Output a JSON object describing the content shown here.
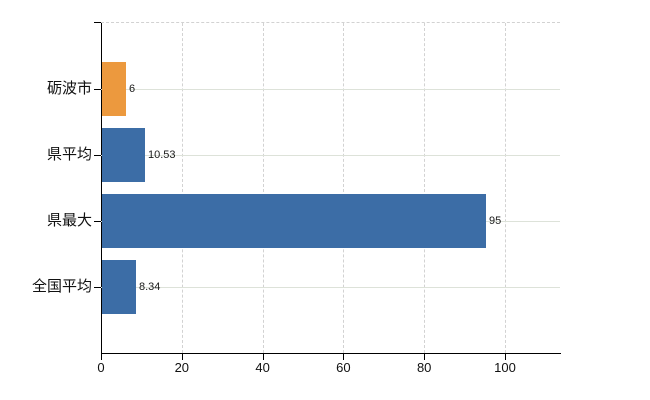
{
  "chart_data": {
    "type": "bar",
    "orientation": "horizontal",
    "title": "",
    "categories": [
      "砺波市",
      "県平均",
      "県最大",
      "全国平均"
    ],
    "values": [
      6,
      10.53,
      95,
      8.34
    ],
    "value_labels": [
      "6",
      "10.53",
      "95",
      "8.34"
    ],
    "bar_colors": [
      "#EC993E",
      "#3C6DA6",
      "#3C6DA6",
      "#3C6DA6"
    ],
    "x_ticks": [
      0,
      20,
      40,
      60,
      80,
      100
    ],
    "x_tick_labels": [
      "0",
      "20",
      "40",
      "60",
      "80",
      "100"
    ],
    "xlim": [
      0,
      113.6
    ],
    "grid": true,
    "legend": false
  },
  "colors": {
    "background": "#ffffff",
    "axis": "#000000",
    "grid_vertical": "#d2d2d2",
    "grid_horizontal": "#dde2d9",
    "text": "#111111",
    "orange_bar": "#EC993E",
    "blue_bar": "#3C6DA6"
  }
}
